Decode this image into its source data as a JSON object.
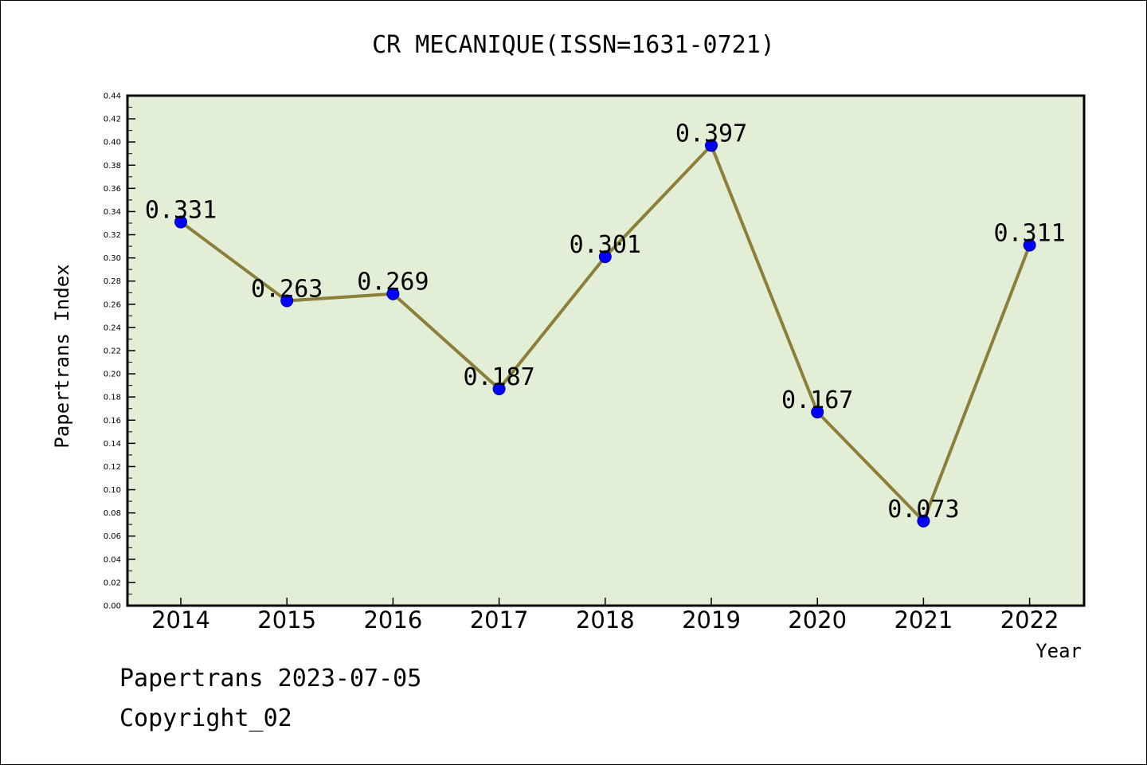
{
  "chart_data": {
    "type": "line",
    "title": "CR MECANIQUE(ISSN=1631-0721)",
    "xlabel": "Year",
    "ylabel": "Papertrans Index",
    "categories": [
      "2014",
      "2015",
      "2016",
      "2017",
      "2018",
      "2019",
      "2020",
      "2021",
      "2022"
    ],
    "series": [
      {
        "values": [
          0.331,
          0.263,
          0.269,
          0.187,
          0.301,
          0.397,
          0.167,
          0.073,
          0.311
        ],
        "data_labels": [
          "0.331",
          "0.263",
          "0.269",
          "0.187",
          "0.301",
          "0.397",
          "0.167",
          "0.073",
          "0.311"
        ]
      }
    ],
    "ylim": [
      0,
      0.44
    ],
    "y_ticks": [
      "0.00",
      "0.02",
      "0.04",
      "0.06",
      "0.08",
      "0.10",
      "0.12",
      "0.14",
      "0.16",
      "0.18",
      "0.20",
      "0.22",
      "0.24",
      "0.26",
      "0.28",
      "0.30",
      "0.32",
      "0.34",
      "0.36",
      "0.38",
      "0.40",
      "0.42",
      "0.44"
    ],
    "grid": false,
    "colors": {
      "plot_background": "#e2efd6",
      "line": "#8b7f3a",
      "marker": "#0000ff"
    }
  },
  "footer": {
    "line1": "Papertrans 2023-07-05",
    "line2": "Copyright_02"
  }
}
